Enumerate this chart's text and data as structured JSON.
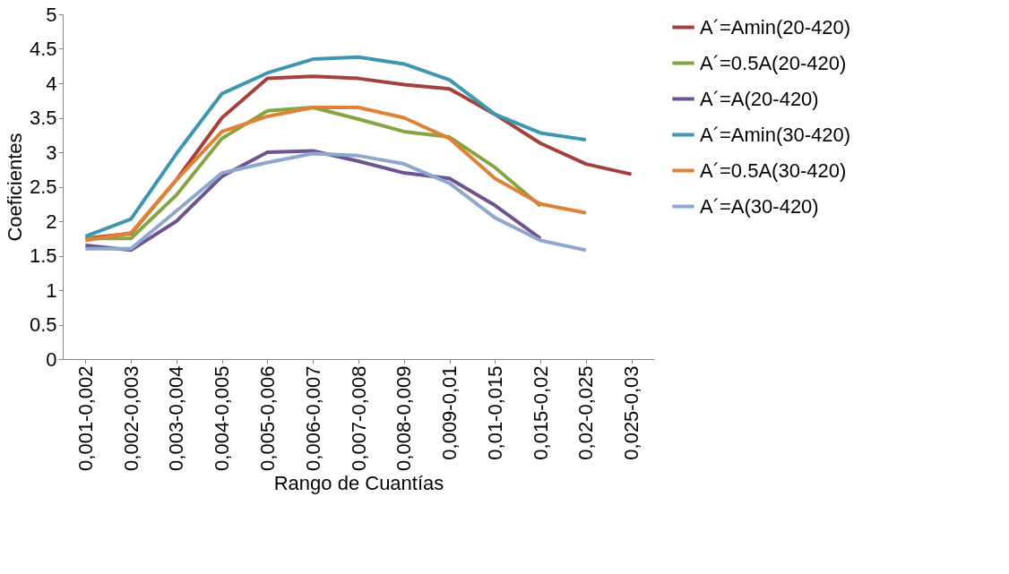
{
  "chart_data": {
    "type": "line",
    "xlabel": "Rango de Cuantías",
    "ylabel": "Coeficientes",
    "categories": [
      "0,001-0,002",
      "0,002-0,003",
      "0,003-0,004",
      "0,004-0,005",
      "0,005-0,006",
      "0,006-0,007",
      "0,007-0,008",
      "0,008-0,009",
      "0,009-0,01",
      "0,01-0,015",
      "0,015-0,02",
      "0,02-0,025",
      "0,025-0,03"
    ],
    "ylim": [
      0,
      5
    ],
    "yticks": [
      0,
      0.5,
      1,
      1.5,
      2,
      2.5,
      3,
      3.5,
      4,
      4.5,
      5
    ],
    "grid": false,
    "legend": "right",
    "marker": "none",
    "line_style": "solid",
    "series": [
      {
        "name": "A´=Amin(20-420)",
        "color": "#a5403d",
        "values": [
          1.75,
          1.82,
          2.6,
          3.5,
          4.07,
          4.1,
          4.07,
          3.98,
          3.92,
          3.55,
          3.13,
          2.83,
          2.68
        ]
      },
      {
        "name": "A´=0.5A(20-420)",
        "color": "#86a542",
        "values": [
          1.75,
          1.75,
          2.38,
          3.2,
          3.6,
          3.65,
          3.48,
          3.3,
          3.22,
          2.78,
          2.22,
          null,
          null
        ]
      },
      {
        "name": "A´=A(20-420)",
        "color": "#6d5490",
        "values": [
          1.65,
          1.58,
          2.0,
          2.65,
          3.0,
          3.02,
          2.87,
          2.7,
          2.62,
          2.23,
          1.75,
          null,
          null
        ]
      },
      {
        "name": "A´=Amin(30-420)",
        "color": "#3d97b0",
        "values": [
          1.78,
          2.03,
          2.98,
          3.85,
          4.15,
          4.35,
          4.38,
          4.28,
          4.05,
          3.55,
          3.28,
          3.18,
          null
        ]
      },
      {
        "name": "A´=0.5A(30-420)",
        "color": "#e08236",
        "values": [
          1.72,
          1.83,
          2.6,
          3.3,
          3.52,
          3.65,
          3.65,
          3.5,
          3.2,
          2.62,
          2.25,
          2.12,
          null
        ]
      },
      {
        "name": "A´=A(30-420)",
        "color": "#8ea7cf",
        "values": [
          1.6,
          1.6,
          2.15,
          2.7,
          2.85,
          2.98,
          2.95,
          2.83,
          2.55,
          2.05,
          1.72,
          1.58,
          null
        ]
      }
    ]
  }
}
